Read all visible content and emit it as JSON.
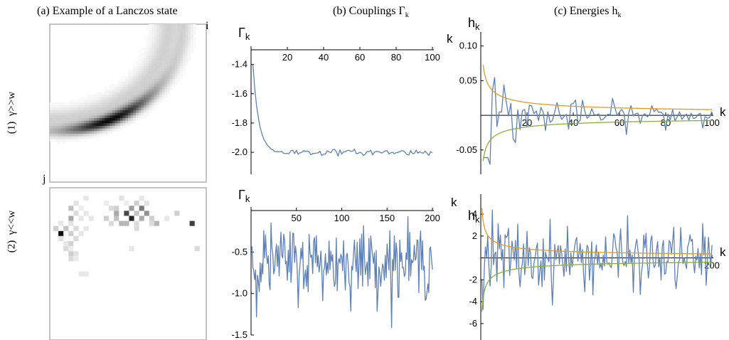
{
  "headers": {
    "a": "(a) Example of a Lanczos state",
    "b_prefix": "(b) Couplings ",
    "b_sym": "Γ",
    "b_sub": "k",
    "c_prefix": "(c) Energies ",
    "c_sym": "h",
    "c_sub": "k"
  },
  "row_labels": [
    "(1)  γ>>w",
    "(2)  γ<<w"
  ],
  "matrix_labels": {
    "i": "i",
    "j": "j"
  },
  "colors": {
    "blue": "#5e81b5",
    "orange": "#e19c24",
    "green": "#8fb032",
    "axis": "#000000"
  },
  "chart_data": [
    {
      "id": "a1",
      "type": "heatmap",
      "title": "(a) Example of a Lanczos state",
      "row": "(1)  γ>>w",
      "description_values": "grayscale density concentrated along an arc from upper-right to lower-middle",
      "arc_center": [
        0.0,
        0.0
      ],
      "arc_radius": [
        0.86,
        0.68
      ],
      "peak_angle_deg": 45
    },
    {
      "id": "b1",
      "type": "line",
      "title": "(b) Couplings Γk",
      "row": "(1)  γ>>w",
      "ylabel": "Γk",
      "xlabel": "k",
      "xlim": [
        0,
        100
      ],
      "ylim": [
        -2.15,
        -1.3
      ],
      "xticks": [
        20,
        40,
        60,
        80,
        100
      ],
      "yticks": [
        -1.4,
        -1.6,
        -1.8,
        -2.0
      ],
      "series": [
        {
          "color": "#5e81b5",
          "model": "decay",
          "start": -1.4,
          "end": -2.0,
          "noise": 0.01,
          "n": 100
        }
      ]
    },
    {
      "id": "c1",
      "type": "line",
      "title": "(c) Energies hk",
      "row": "(1)  γ>>w",
      "ylabel": "hk",
      "xlabel": "k",
      "xlim": [
        0,
        100
      ],
      "ylim": [
        -0.085,
        0.115
      ],
      "xticks": [
        20,
        40,
        60,
        80,
        100
      ],
      "yticks": [
        0.1,
        0.05,
        -0.05
      ],
      "series": [
        {
          "color": "#5e81b5",
          "model": "noise",
          "amp_start": 0.09,
          "amp_end": 0.018,
          "n": 100
        },
        {
          "color": "#e19c24",
          "model": "envelope",
          "sign": 1,
          "scale": 0.083,
          "power": 0.5
        },
        {
          "color": "#8fb032",
          "model": "envelope",
          "sign": -1,
          "scale": 0.075,
          "power": 0.5
        }
      ]
    },
    {
      "id": "a2",
      "type": "heatmap",
      "title": "(a) Example of a Lanczos state",
      "row": "(2)  γ<<w",
      "cells": [
        [
          6,
          1,
          10
        ],
        [
          13,
          1,
          12
        ],
        [
          17,
          1,
          10
        ],
        [
          4,
          2,
          12
        ],
        [
          10,
          2,
          8
        ],
        [
          14,
          2,
          8
        ],
        [
          16,
          2,
          20
        ],
        [
          18,
          2,
          12
        ],
        [
          3,
          3,
          25
        ],
        [
          5,
          3,
          8
        ],
        [
          11,
          3,
          15
        ],
        [
          15,
          3,
          40
        ],
        [
          17,
          3,
          55
        ],
        [
          12,
          3,
          20
        ],
        [
          4,
          4,
          15
        ],
        [
          6,
          4,
          10
        ],
        [
          12,
          4,
          35
        ],
        [
          14,
          4,
          75
        ],
        [
          16,
          4,
          25
        ],
        [
          18,
          4,
          45
        ],
        [
          24,
          4,
          20
        ],
        [
          3,
          5,
          35
        ],
        [
          5,
          5,
          10
        ],
        [
          7,
          5,
          10
        ],
        [
          10,
          5,
          20
        ],
        [
          12,
          5,
          25
        ],
        [
          15,
          5,
          90
        ],
        [
          17,
          5,
          35
        ],
        [
          19,
          5,
          20
        ],
        [
          22,
          5,
          10
        ],
        [
          1,
          6,
          10
        ],
        [
          3,
          6,
          12
        ],
        [
          11,
          6,
          15
        ],
        [
          13,
          6,
          30
        ],
        [
          14,
          6,
          30
        ],
        [
          16,
          6,
          15
        ],
        [
          19,
          6,
          15
        ],
        [
          20,
          6,
          30
        ],
        [
          27,
          6,
          80
        ],
        [
          0,
          7,
          20
        ],
        [
          2,
          7,
          25
        ],
        [
          4,
          7,
          15
        ],
        [
          6,
          7,
          10
        ],
        [
          16,
          7,
          15
        ],
        [
          1,
          8,
          100
        ],
        [
          3,
          8,
          20
        ],
        [
          5,
          8,
          10
        ],
        [
          1,
          9,
          12
        ],
        [
          4,
          9,
          15
        ],
        [
          2,
          10,
          10
        ],
        [
          3,
          10,
          18
        ],
        [
          2,
          11,
          15
        ],
        [
          3,
          11,
          8
        ],
        [
          15,
          11,
          10
        ],
        [
          28,
          11,
          15
        ],
        [
          3,
          12,
          20
        ],
        [
          4,
          12,
          12
        ],
        [
          3,
          13,
          15
        ],
        [
          4,
          13,
          8
        ],
        [
          5,
          16,
          10
        ],
        [
          6,
          16,
          10
        ]
      ],
      "grid_size": 31
    },
    {
      "id": "b2",
      "type": "line",
      "title": "(b) Couplings Γk",
      "row": "(2)  γ<<w",
      "ylabel": "Γk",
      "xlabel": "k",
      "xlim": [
        0,
        200
      ],
      "ylim": [
        -1.5,
        0.0
      ],
      "xticks": [
        50,
        100,
        150,
        200
      ],
      "yticks": [
        -0.5,
        -1.0,
        -1.5
      ],
      "series": [
        {
          "color": "#5e81b5",
          "model": "noise",
          "mean": -0.62,
          "amp": 0.3,
          "n": 200
        }
      ]
    },
    {
      "id": "c2",
      "type": "line",
      "title": "(c) Energies hk",
      "row": "(2)  γ<<w",
      "ylabel": "hk",
      "xlabel": "k",
      "xlim": [
        0,
        200
      ],
      "ylim": [
        -7.5,
        5.5
      ],
      "xticks": [
        200
      ],
      "yticks": [
        4,
        2,
        -2,
        -4,
        -6
      ],
      "series": [
        {
          "color": "#5e81b5",
          "model": "noise",
          "amp_start": 4.5,
          "amp_end": 2.8,
          "n": 200
        },
        {
          "color": "#e19c24",
          "model": "envelope",
          "sign": 1,
          "scale": 5.2,
          "power": 0.5
        },
        {
          "color": "#8fb032",
          "model": "envelope",
          "sign": -1,
          "scale": 5.6,
          "power": 0.5
        }
      ]
    }
  ]
}
